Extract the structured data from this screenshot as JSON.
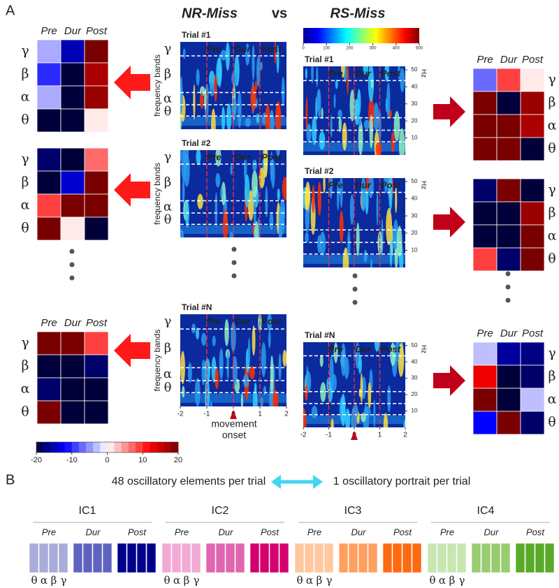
{
  "panel_a": {
    "label": "A",
    "title_left": "NR-Miss",
    "vs": "vs",
    "title_right": "RS-Miss",
    "bands": [
      "γ",
      "β",
      "α",
      "θ"
    ],
    "phases": [
      "Pre",
      "Dur",
      "Post"
    ],
    "trials": [
      "Trial #1",
      "Trial #2",
      "Trial #N"
    ],
    "heatmaps_left": [
      [
        [
          -4,
          -15,
          20
        ],
        [
          -10,
          -20,
          17
        ],
        [
          -4,
          -20,
          18
        ],
        [
          -20,
          -20,
          1
        ]
      ],
      [
        [
          -18,
          -20,
          7
        ],
        [
          -20,
          -14,
          20
        ],
        [
          9,
          20,
          20
        ],
        [
          20,
          1,
          -20
        ]
      ],
      [
        [
          20,
          20,
          9
        ],
        [
          -20,
          -20,
          -18
        ],
        [
          -18,
          -20,
          -20
        ],
        [
          20,
          -20,
          -20
        ]
      ]
    ],
    "heatmaps_right": [
      [
        [
          -7,
          9,
          1
        ],
        [
          20,
          -20,
          18
        ],
        [
          20,
          20,
          17
        ],
        [
          20,
          20,
          -20
        ]
      ],
      [
        [
          -18,
          20,
          -20
        ],
        [
          -20,
          -20,
          18
        ],
        [
          -20,
          -20,
          20
        ],
        [
          9,
          -18,
          20
        ]
      ],
      [
        [
          -3,
          -16,
          -17
        ],
        [
          13,
          -20,
          -18
        ],
        [
          20,
          -20,
          -3
        ],
        [
          -12,
          20,
          -18
        ]
      ]
    ],
    "spectrogram": {
      "xlim": [
        -2,
        2
      ],
      "xticks": [
        -2,
        -1,
        0,
        1,
        2
      ],
      "ylim": [
        0,
        52
      ],
      "yticks": [
        10,
        20,
        30,
        40,
        50
      ],
      "ylabel": "Hz",
      "band_axis_label": "frequency bands",
      "onset_label": [
        "movement",
        "onset"
      ]
    },
    "power_colorbar": {
      "lim": [
        0,
        500
      ],
      "ticks": [
        0,
        100,
        200,
        300,
        400,
        500
      ]
    },
    "z_colorbar": {
      "lim": [
        -20,
        20
      ],
      "ticks": [
        -20,
        -10,
        0,
        10,
        20
      ]
    }
  },
  "panel_b": {
    "label": "B",
    "left_text": "48 oscillatory elements per trial",
    "right_text": "1 oscillatory portrait per trial",
    "components": [
      {
        "name": "IC1",
        "colors": [
          "#a9acd8",
          "#5f63c0",
          "#00008b"
        ]
      },
      {
        "name": "IC2",
        "colors": [
          "#f2aad4",
          "#e066b0",
          "#d4006f"
        ]
      },
      {
        "name": "IC3",
        "colors": [
          "#ffc8a0",
          "#ffa060",
          "#ff6a10"
        ]
      },
      {
        "name": "IC4",
        "colors": [
          "#c8e6b0",
          "#98cc70",
          "#5aaa2a"
        ]
      }
    ]
  }
}
